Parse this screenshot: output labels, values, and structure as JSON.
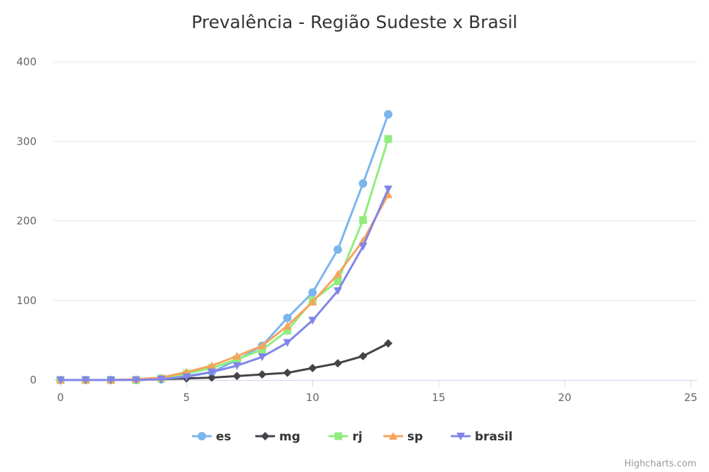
{
  "chart_data": {
    "type": "line",
    "title": "Prevalência - Região Sudeste x Brasil",
    "xlabel": "",
    "ylabel": "",
    "xlim": [
      0,
      25
    ],
    "ylim": [
      0,
      400
    ],
    "x_ticks": [
      0,
      5,
      10,
      15,
      20,
      25
    ],
    "y_ticks": [
      0,
      100,
      200,
      300,
      400
    ],
    "grid": true,
    "legend_position": "bottom-center",
    "x": [
      0,
      1,
      2,
      3,
      4,
      5,
      6,
      7,
      8,
      9,
      10,
      11,
      12,
      13
    ],
    "series": [
      {
        "name": "es",
        "color": "#7cb5ec",
        "marker": "circle",
        "values": [
          0,
          0,
          0,
          0,
          1,
          5,
          10,
          25,
          43,
          78,
          110,
          164,
          247,
          334
        ]
      },
      {
        "name": "mg",
        "color": "#434348",
        "marker": "diamond",
        "values": [
          0,
          0,
          0,
          0,
          1,
          2,
          3,
          5,
          7,
          9,
          15,
          21,
          30,
          46
        ]
      },
      {
        "name": "rj",
        "color": "#90ed7d",
        "marker": "square",
        "values": [
          0,
          0,
          0,
          0,
          2,
          8,
          15,
          26,
          38,
          62,
          100,
          124,
          201,
          303
        ]
      },
      {
        "name": "sp",
        "color": "#f7a35c",
        "marker": "triangle",
        "values": [
          0,
          0,
          0,
          1,
          3,
          10,
          18,
          30,
          43,
          68,
          98,
          133,
          175,
          233
        ]
      },
      {
        "name": "brasil",
        "color": "#8085e9",
        "marker": "triangle-down",
        "values": [
          0,
          0,
          0,
          0,
          1,
          4,
          10,
          18,
          29,
          47,
          75,
          112,
          168,
          240
        ]
      }
    ]
  },
  "credits": "Highcharts.com"
}
